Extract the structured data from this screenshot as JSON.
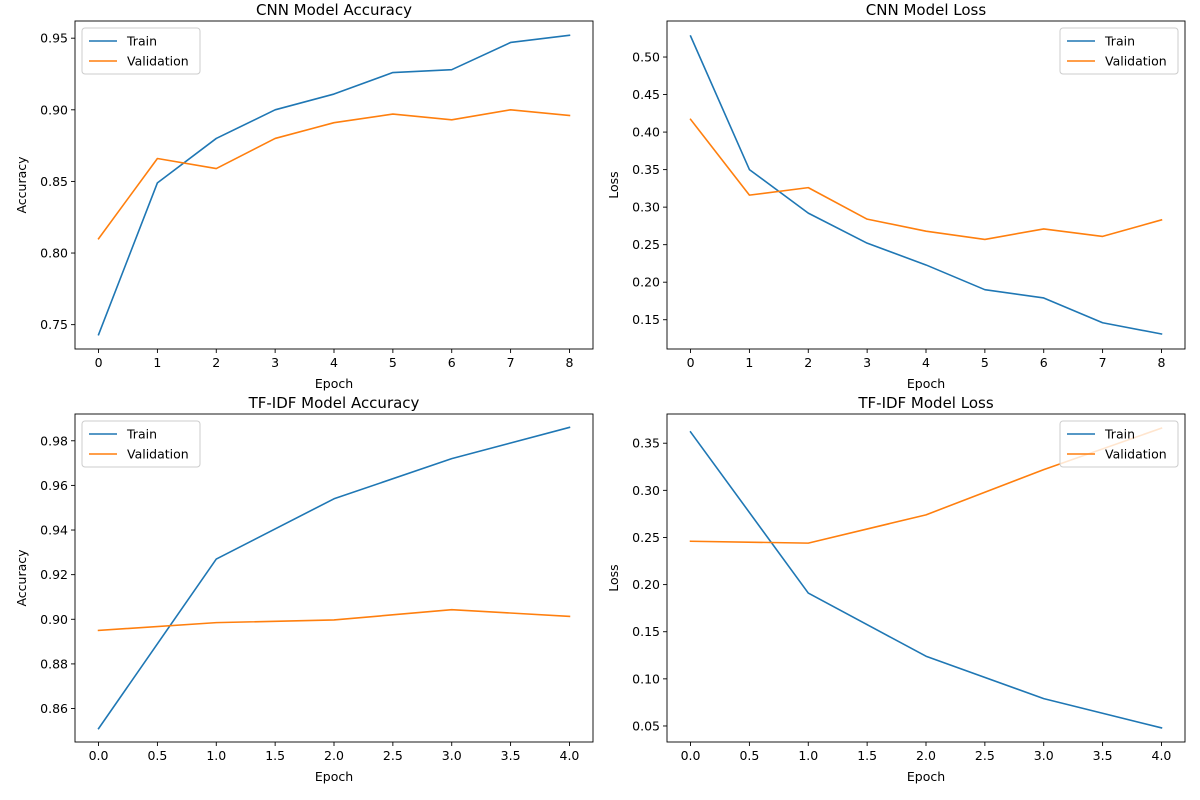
{
  "chart_data": [
    {
      "type": "line",
      "title": "CNN Model Accuracy",
      "xlabel": "Epoch",
      "ylabel": "Accuracy",
      "xlim": [
        -0.4,
        8.4
      ],
      "ylim": [
        0.733,
        0.962
      ],
      "xticks": [
        0,
        1,
        2,
        3,
        4,
        5,
        6,
        7,
        8
      ],
      "xtick_labels": [
        "0",
        "1",
        "2",
        "3",
        "4",
        "5",
        "6",
        "7",
        "8"
      ],
      "yticks": [
        0.75,
        0.8,
        0.85,
        0.9,
        0.95
      ],
      "ytick_labels": [
        "0.75",
        "0.80",
        "0.85",
        "0.90",
        "0.95"
      ],
      "legend_position": "top-left",
      "x": [
        0,
        1,
        2,
        3,
        4,
        5,
        6,
        7,
        8
      ],
      "series": [
        {
          "name": "Train",
          "color": "#1f77b4",
          "values": [
            0.743,
            0.849,
            0.88,
            0.9,
            0.911,
            0.926,
            0.928,
            0.947,
            0.952
          ]
        },
        {
          "name": "Validation",
          "color": "#ff7f0e",
          "values": [
            0.81,
            0.866,
            0.859,
            0.88,
            0.891,
            0.897,
            0.893,
            0.9,
            0.896
          ]
        }
      ]
    },
    {
      "type": "line",
      "title": "CNN Model Loss",
      "xlabel": "Epoch",
      "ylabel": "Loss",
      "xlim": [
        -0.4,
        8.4
      ],
      "ylim": [
        0.111,
        0.548
      ],
      "xticks": [
        0,
        1,
        2,
        3,
        4,
        5,
        6,
        7,
        8
      ],
      "xtick_labels": [
        "0",
        "1",
        "2",
        "3",
        "4",
        "5",
        "6",
        "7",
        "8"
      ],
      "yticks": [
        0.15,
        0.2,
        0.25,
        0.3,
        0.35,
        0.4,
        0.45,
        0.5
      ],
      "ytick_labels": [
        "0.15",
        "0.20",
        "0.25",
        "0.30",
        "0.35",
        "0.40",
        "0.45",
        "0.50"
      ],
      "legend_position": "top-right",
      "x": [
        0,
        1,
        2,
        3,
        4,
        5,
        6,
        7,
        8
      ],
      "series": [
        {
          "name": "Train",
          "color": "#1f77b4",
          "values": [
            0.528,
            0.35,
            0.292,
            0.252,
            0.223,
            0.19,
            0.179,
            0.146,
            0.131
          ]
        },
        {
          "name": "Validation",
          "color": "#ff7f0e",
          "values": [
            0.417,
            0.316,
            0.326,
            0.284,
            0.268,
            0.257,
            0.271,
            0.261,
            0.283
          ]
        }
      ]
    },
    {
      "type": "line",
      "title": "TF-IDF Model Accuracy",
      "xlabel": "Epoch",
      "ylabel": "Accuracy",
      "xlim": [
        -0.2,
        4.2
      ],
      "ylim": [
        0.845,
        0.992
      ],
      "xticks": [
        0.0,
        0.5,
        1.0,
        1.5,
        2.0,
        2.5,
        3.0,
        3.5,
        4.0
      ],
      "xtick_labels": [
        "0.0",
        "0.5",
        "1.0",
        "1.5",
        "2.0",
        "2.5",
        "3.0",
        "3.5",
        "4.0"
      ],
      "yticks": [
        0.86,
        0.88,
        0.9,
        0.92,
        0.94,
        0.96,
        0.98
      ],
      "ytick_labels": [
        "0.86",
        "0.88",
        "0.90",
        "0.92",
        "0.94",
        "0.96",
        "0.98"
      ],
      "legend_position": "top-left",
      "x": [
        0,
        1,
        2,
        3,
        4
      ],
      "series": [
        {
          "name": "Train",
          "color": "#1f77b4",
          "values": [
            0.851,
            0.927,
            0.954,
            0.972,
            0.986
          ]
        },
        {
          "name": "Validation",
          "color": "#ff7f0e",
          "values": [
            0.895,
            0.8985,
            0.8997,
            0.9043,
            0.9013
          ]
        }
      ]
    },
    {
      "type": "line",
      "title": "TF-IDF Model Loss",
      "xlabel": "Epoch",
      "ylabel": "Loss",
      "xlim": [
        -0.2,
        4.2
      ],
      "ylim": [
        0.033,
        0.381
      ],
      "xticks": [
        0.0,
        0.5,
        1.0,
        1.5,
        2.0,
        2.5,
        3.0,
        3.5,
        4.0
      ],
      "xtick_labels": [
        "0.0",
        "0.5",
        "1.0",
        "1.5",
        "2.0",
        "2.5",
        "3.0",
        "3.5",
        "4.0"
      ],
      "yticks": [
        0.05,
        0.1,
        0.15,
        0.2,
        0.25,
        0.3,
        0.35
      ],
      "ytick_labels": [
        "0.05",
        "0.10",
        "0.15",
        "0.20",
        "0.25",
        "0.30",
        "0.35"
      ],
      "legend_position": "top-right",
      "x": [
        0,
        1,
        2,
        3,
        4
      ],
      "series": [
        {
          "name": "Train",
          "color": "#1f77b4",
          "values": [
            0.362,
            0.191,
            0.124,
            0.079,
            0.048
          ]
        },
        {
          "name": "Validation",
          "color": "#ff7f0e",
          "values": [
            0.246,
            0.244,
            0.274,
            0.322,
            0.366
          ]
        }
      ]
    }
  ]
}
